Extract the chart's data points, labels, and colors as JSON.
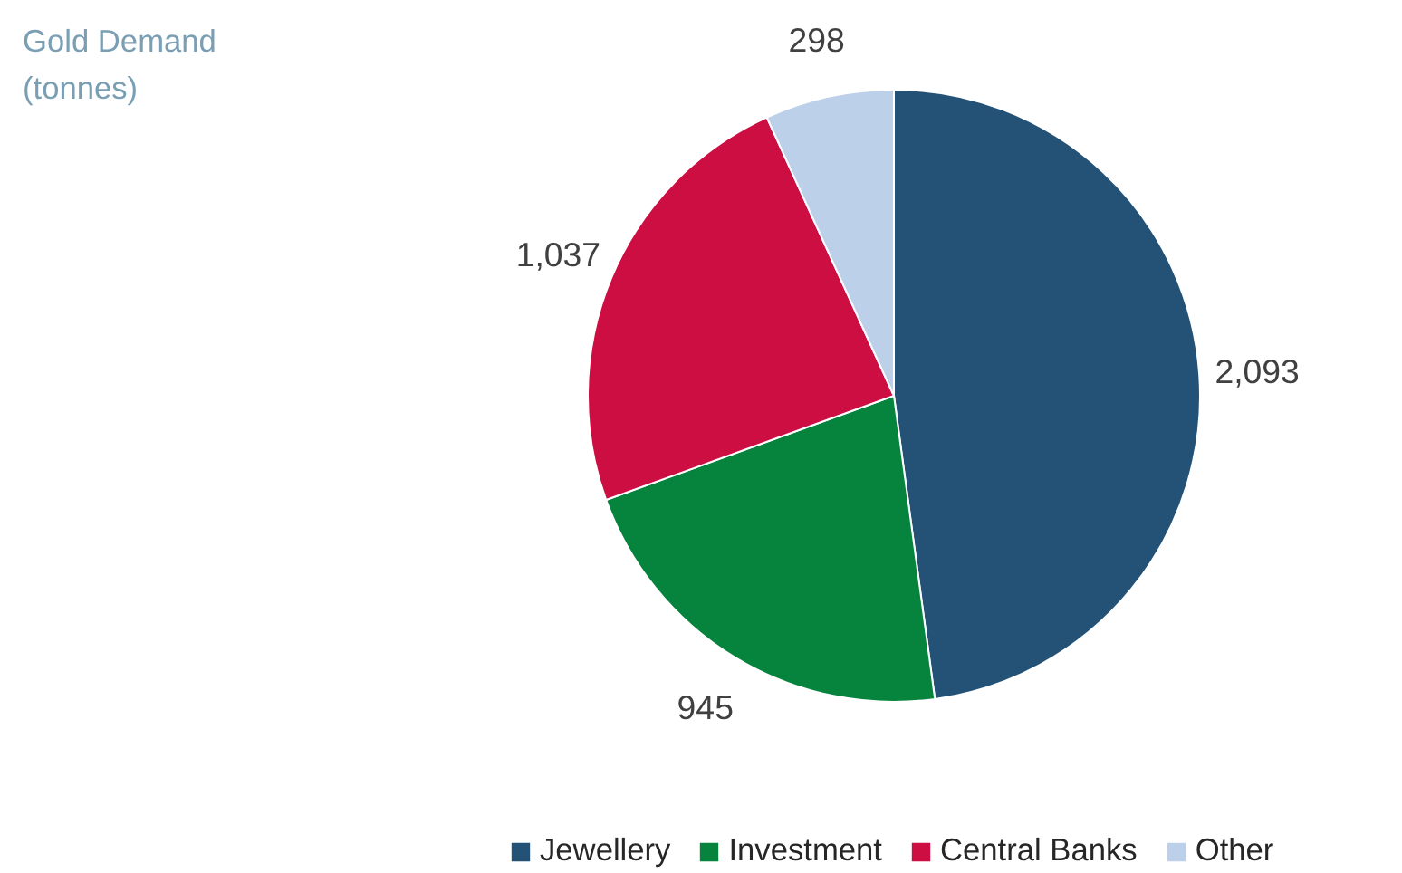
{
  "chart_data": {
    "type": "pie",
    "title": "Gold Demand\n(tonnes)",
    "categories": [
      "Jewellery",
      "Investment",
      "Central Banks",
      "Other"
    ],
    "values": [
      2093,
      945,
      1037,
      298
    ],
    "colors": [
      "#245276",
      "#06843e",
      "#cc0e42",
      "#bcd0ea"
    ],
    "value_labels": [
      "2,093",
      "945",
      "1,037",
      "298"
    ],
    "legend": "bottom"
  }
}
